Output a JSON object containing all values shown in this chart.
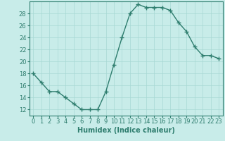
{
  "x": [
    0,
    1,
    2,
    3,
    4,
    5,
    6,
    7,
    8,
    9,
    10,
    11,
    12,
    13,
    14,
    15,
    16,
    17,
    18,
    19,
    20,
    21,
    22,
    23
  ],
  "y": [
    18,
    16.5,
    15,
    15,
    14,
    13,
    12,
    12,
    12,
    15,
    19.5,
    24,
    28,
    29.5,
    29,
    29,
    29,
    28.5,
    26.5,
    25,
    22.5,
    21,
    21,
    20.5
  ],
  "line_color": "#2e7d6e",
  "marker": "+",
  "marker_size": 4,
  "marker_lw": 1.0,
  "line_width": 1.0,
  "bg_color": "#c8ece9",
  "grid_color": "#a8d8d4",
  "xlabel": "Humidex (Indice chaleur)",
  "ylim": [
    11,
    30
  ],
  "xlim": [
    -0.5,
    23.5
  ],
  "yticks": [
    12,
    14,
    16,
    18,
    20,
    22,
    24,
    26,
    28
  ],
  "xticks": [
    0,
    1,
    2,
    3,
    4,
    5,
    6,
    7,
    8,
    9,
    10,
    11,
    12,
    13,
    14,
    15,
    16,
    17,
    18,
    19,
    20,
    21,
    22,
    23
  ],
  "xtick_labels": [
    "0",
    "1",
    "2",
    "3",
    "4",
    "5",
    "6",
    "7",
    "8",
    "9",
    "10",
    "11",
    "12",
    "13",
    "14",
    "15",
    "16",
    "17",
    "18",
    "19",
    "20",
    "21",
    "22",
    "23"
  ],
  "tick_color": "#2e7d6e",
  "label_fontsize": 7,
  "tick_fontsize": 6,
  "spine_color": "#2e7d6e"
}
